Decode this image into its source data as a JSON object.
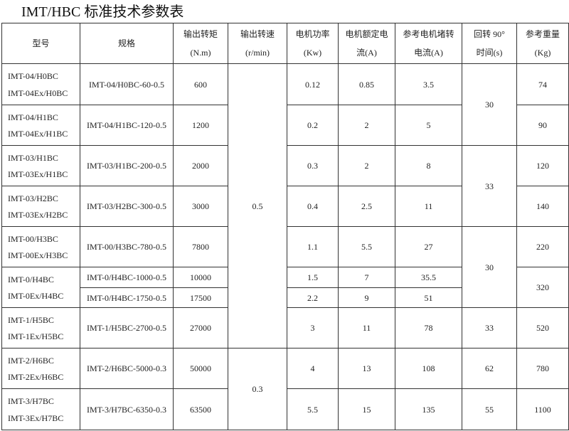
{
  "title": "IMT/HBC 标准技术参数表",
  "headers": [
    [
      "型号"
    ],
    [
      "规格"
    ],
    [
      "输出转矩",
      "(N.m)"
    ],
    [
      "输出转速",
      "(r/min)"
    ],
    [
      "电机功率",
      "(Kw)"
    ],
    [
      "电机额定电",
      "流(A)"
    ],
    [
      "参考电机堵转",
      "电流(A)"
    ],
    [
      "回转 90°",
      "时间(s)"
    ],
    [
      "参考重量",
      "(Kg)"
    ]
  ],
  "rows": [
    {
      "model": [
        "IMT-04/H0BC",
        "IMT-04Ex/H0BC"
      ],
      "spec": "IMT-04/H0BC-60-0.5",
      "torque": "600",
      "speed": "0.5",
      "power": "0.12",
      "current": "0.85",
      "stall": "3.5",
      "time": "30",
      "weight": "74"
    },
    {
      "model": [
        "IMT-04/H1BC",
        "IMT-04Ex/H1BC"
      ],
      "spec": "IMT-04/H1BC-120-0.5",
      "torque": "1200",
      "power": "0.2",
      "current": "2",
      "stall": "5",
      "weight": "90"
    },
    {
      "model": [
        "IMT-03/H1BC",
        "IMT-03Ex/H1BC"
      ],
      "spec": "IMT-03/H1BC-200-0.5",
      "torque": "2000",
      "power": "0.3",
      "current": "2",
      "stall": "8",
      "time": "33",
      "weight": "120"
    },
    {
      "model": [
        "IMT-03/H2BC",
        "IMT-03Ex/H2BC"
      ],
      "spec": "IMT-03/H2BC-300-0.5",
      "torque": "3000",
      "power": "0.4",
      "current": "2.5",
      "stall": "11",
      "weight": "140"
    },
    {
      "model": [
        "IMT-00/H3BC",
        "IMT-00Ex/H3BC"
      ],
      "spec": "IMT-00/H3BC-780-0.5",
      "torque": "7800",
      "power": "1.1",
      "current": "5.5",
      "stall": "27",
      "time": "30",
      "weight": "220"
    },
    {
      "model": [
        "IMT-0/H4BC",
        "IMT-0Ex/H4BC"
      ],
      "spec": "IMT-0/H4BC-1000-0.5",
      "torque": "10000",
      "power": "1.5",
      "current": "7",
      "stall": "35.5",
      "weight": "320"
    },
    {
      "spec": "IMT-0/H4BC-1750-0.5",
      "torque": "17500",
      "power": "2.2",
      "current": "9",
      "stall": "51"
    },
    {
      "model": [
        "IMT-1/H5BC",
        "IMT-1Ex/H5BC"
      ],
      "spec": "IMT-1/H5BC-2700-0.5",
      "torque": "27000",
      "power": "3",
      "current": "11",
      "stall": "78",
      "time": "33",
      "weight": "520"
    },
    {
      "model": [
        "IMT-2/H6BC",
        "IMT-2Ex/H6BC"
      ],
      "spec": "IMT-2/H6BC-5000-0.3",
      "torque": "50000",
      "speed": "0.3",
      "power": "4",
      "current": "13",
      "stall": "108",
      "time": "62",
      "weight": "780"
    },
    {
      "model": [
        "IMT-3/H7BC",
        "IMT-3Ex/H7BC"
      ],
      "spec": "IMT-3/H7BC-6350-0.3",
      "torque": "63500",
      "power": "5.5",
      "current": "15",
      "stall": "135",
      "time": "55",
      "weight": "1100"
    }
  ]
}
